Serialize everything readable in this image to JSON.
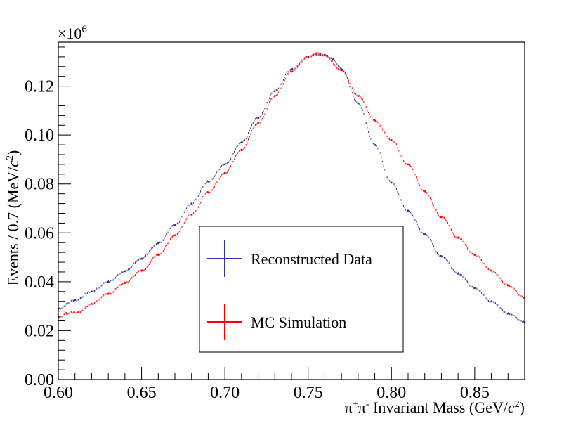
{
  "chart_data": {
    "type": "scatter",
    "title": "",
    "xlabel_parts": {
      "pi": "π",
      "plus": "+",
      "mid": "π",
      "minus": "-",
      "rest": " Invariant Mass (GeV/",
      "c": "c",
      "sq": "2",
      "close": ")"
    },
    "ylabel_parts": {
      "main": "Events / 0.7 (MeV/",
      "c": "c",
      "sq": "2",
      "close": ")"
    },
    "exponent_parts": {
      "times": "×10",
      "power": "6"
    },
    "xlim": [
      0.6,
      0.88
    ],
    "ylim": [
      0.0,
      0.138
    ],
    "x_ticks": [
      "0.60",
      "0.65",
      "0.70",
      "0.75",
      "0.80",
      "0.85"
    ],
    "y_ticks": [
      "0.00",
      "0.02",
      "0.04",
      "0.06",
      "0.08",
      "0.10",
      "0.12"
    ],
    "legend": {
      "position": "center-bottom",
      "entries": [
        {
          "name": "Reconstructed Data",
          "color": "#333399"
        },
        {
          "name": "MC Simulation",
          "color": "#ff0000"
        }
      ]
    },
    "series": [
      {
        "name": "Reconstructed Data",
        "color": "#333399",
        "x": [
          0.6,
          0.61,
          0.62,
          0.63,
          0.64,
          0.65,
          0.66,
          0.67,
          0.68,
          0.69,
          0.7,
          0.71,
          0.72,
          0.73,
          0.74,
          0.75,
          0.755,
          0.76,
          0.765,
          0.77,
          0.78,
          0.79,
          0.8,
          0.81,
          0.82,
          0.83,
          0.84,
          0.85,
          0.86,
          0.87,
          0.88
        ],
        "values": [
          0.029,
          0.0325,
          0.036,
          0.04,
          0.0443,
          0.0495,
          0.0558,
          0.0632,
          0.072,
          0.081,
          0.088,
          0.097,
          0.107,
          0.118,
          0.127,
          0.132,
          0.133,
          0.1328,
          0.131,
          0.127,
          0.113,
          0.096,
          0.0805,
          0.069,
          0.0595,
          0.0505,
          0.0433,
          0.0375,
          0.032,
          0.027,
          0.0235
        ]
      },
      {
        "name": "MC Simulation",
        "color": "#ff0000",
        "x": [
          0.6,
          0.605,
          0.612,
          0.62,
          0.63,
          0.64,
          0.65,
          0.66,
          0.67,
          0.68,
          0.69,
          0.7,
          0.71,
          0.72,
          0.73,
          0.74,
          0.75,
          0.755,
          0.76,
          0.77,
          0.78,
          0.79,
          0.8,
          0.81,
          0.82,
          0.83,
          0.84,
          0.85,
          0.86,
          0.87,
          0.88
        ],
        "values": [
          0.0255,
          0.0272,
          0.0275,
          0.031,
          0.035,
          0.0395,
          0.0445,
          0.051,
          0.059,
          0.0675,
          0.0765,
          0.0845,
          0.094,
          0.105,
          0.116,
          0.126,
          0.132,
          0.1335,
          0.1325,
          0.1265,
          0.116,
          0.106,
          0.098,
          0.088,
          0.077,
          0.0665,
          0.058,
          0.051,
          0.0445,
          0.0385,
          0.0335
        ]
      }
    ]
  }
}
